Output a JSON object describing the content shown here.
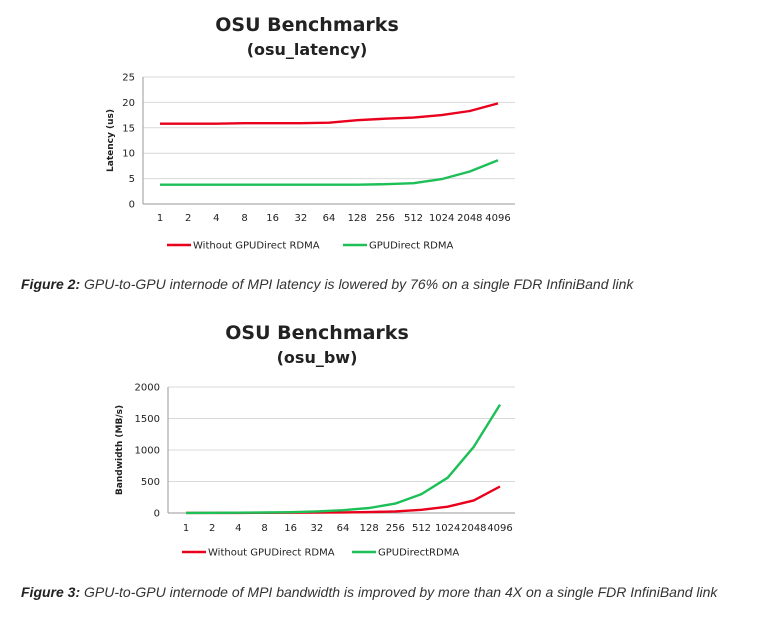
{
  "chart_data": [
    {
      "type": "line",
      "title": "OSU Benchmarks",
      "subtitle": "(osu_latency)",
      "ylabel": "Latency (us)",
      "xlabel": "",
      "categories": [
        "1",
        "2",
        "4",
        "8",
        "16",
        "32",
        "64",
        "128",
        "256",
        "512",
        "1024",
        "2048",
        "4096"
      ],
      "ylim": [
        0,
        25
      ],
      "yticks": [
        0,
        5,
        10,
        15,
        20,
        25
      ],
      "grid": true,
      "legend": "bottom",
      "series": [
        {
          "name": "Without GPUDirect RDMA",
          "color": "#e8001c",
          "values": [
            15.8,
            15.8,
            15.8,
            15.9,
            15.9,
            15.9,
            16.0,
            16.5,
            16.8,
            17.0,
            17.5,
            18.3,
            19.8
          ]
        },
        {
          "name": "GPUDirect RDMA",
          "color": "#1dbf57",
          "values": [
            3.8,
            3.8,
            3.8,
            3.8,
            3.8,
            3.8,
            3.8,
            3.8,
            3.9,
            4.1,
            4.9,
            6.4,
            8.6
          ]
        }
      ]
    },
    {
      "type": "line",
      "title": "OSU Benchmarks",
      "subtitle": "(osu_bw)",
      "ylabel": "Bandwidth (MB/s)",
      "xlabel": "",
      "categories": [
        "1",
        "2",
        "4",
        "8",
        "16",
        "32",
        "64",
        "128",
        "256",
        "512",
        "1024",
        "2048",
        "4096"
      ],
      "ylim": [
        0,
        2000
      ],
      "yticks": [
        0,
        500,
        1000,
        1500,
        2000
      ],
      "grid": true,
      "legend": "bottom",
      "series": [
        {
          "name": "Without GPUDirect RDMA",
          "color": "#e8001c",
          "values": [
            1,
            1,
            2,
            3,
            4,
            6,
            9,
            14,
            25,
            50,
            100,
            200,
            420
          ]
        },
        {
          "name": "GPUDirectRDMA",
          "color": "#1dbf57",
          "values": [
            2,
            3,
            5,
            8,
            12,
            25,
            45,
            80,
            150,
            300,
            560,
            1050,
            1720
          ]
        }
      ]
    }
  ],
  "captions": [
    {
      "lead": "Figure 2:",
      "text": " GPU-to-GPU internode of MPI latency is lowered by 76% on a single FDR InfiniBand link"
    },
    {
      "lead": "Figure 3:",
      "text": " GPU-to-GPU internode of MPI bandwidth is improved by more than 4X on a single FDR InfiniBand link"
    }
  ]
}
